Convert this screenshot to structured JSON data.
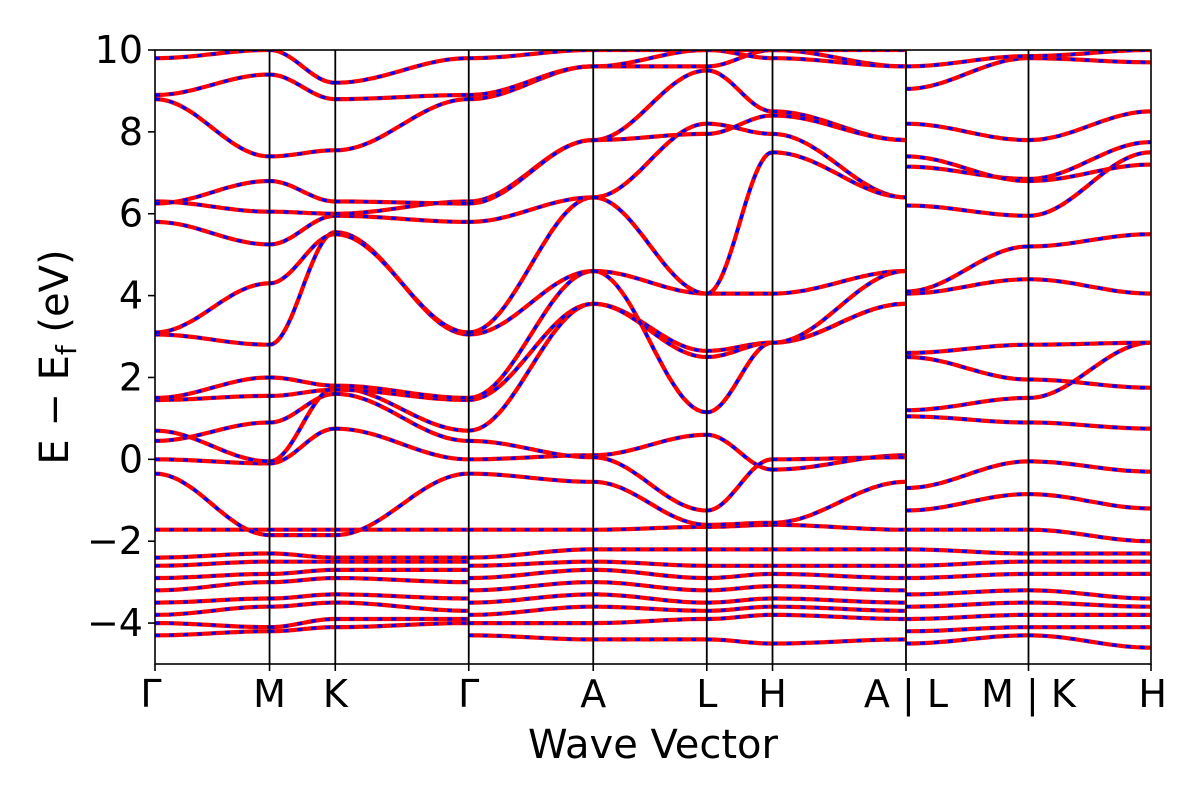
{
  "chart_data": {
    "type": "line",
    "xlabel": "Wave Vector",
    "ylabel": "E − E_f (eV)",
    "ylabel_main": "E − E",
    "ylabel_sub": "f",
    "ylabel_unit": " (eV)",
    "ylim": [
      -5,
      10
    ],
    "yticks": [
      "−4",
      "−2",
      "0",
      "2",
      "4",
      "6",
      "8",
      "10"
    ],
    "ytick_values": [
      -4,
      -2,
      0,
      2,
      4,
      6,
      8,
      10
    ],
    "xlim": [
      0,
      1
    ],
    "kpoints": [
      {
        "label": "Γ",
        "x": 0.0
      },
      {
        "label": "M",
        "x": 0.115
      },
      {
        "label": "K",
        "x": 0.181
      },
      {
        "label": "Γ",
        "x": 0.315
      },
      {
        "label": "A",
        "x": 0.44
      },
      {
        "label": "L",
        "x": 0.554
      },
      {
        "label": "H",
        "x": 0.62
      },
      {
        "label": "A | L",
        "x": 0.754
      },
      {
        "label": "M | K",
        "x": 0.877
      },
      {
        "label": "H",
        "x": 1.0
      }
    ],
    "series_colors": {
      "primary": "#ff0000",
      "secondary": "#0000ff"
    },
    "segments": [
      {
        "x0": 0.0,
        "x1": 0.115,
        "bands": [
          [
            -4.3,
            -4.2
          ],
          [
            -4.0,
            -4.1
          ],
          [
            -3.8,
            -3.6
          ],
          [
            -3.5,
            -3.4
          ],
          [
            -3.2,
            -3.0
          ],
          [
            -2.9,
            -2.8
          ],
          [
            -2.6,
            -2.5
          ],
          [
            -2.4,
            -2.3
          ],
          [
            -1.72,
            -1.72
          ],
          [
            -0.35,
            -1.85
          ],
          [
            0.0,
            -0.1
          ],
          [
            0.45,
            0.9
          ],
          [
            0.7,
            -0.05
          ],
          [
            1.45,
            1.55
          ],
          [
            1.5,
            2.0
          ],
          [
            3.05,
            2.8
          ],
          [
            3.1,
            4.3
          ],
          [
            5.8,
            5.25
          ],
          [
            6.3,
            6.05
          ],
          [
            6.25,
            6.8
          ],
          [
            8.8,
            7.4
          ],
          [
            8.9,
            9.4
          ],
          [
            9.8,
            10.0
          ]
        ]
      },
      {
        "x0": 0.115,
        "x1": 0.181,
        "bands": [
          [
            -4.2,
            -4.1
          ],
          [
            -4.1,
            -3.9
          ],
          [
            -3.6,
            -3.5
          ],
          [
            -3.4,
            -3.3
          ],
          [
            -3.0,
            -2.9
          ],
          [
            -2.8,
            -2.7
          ],
          [
            -2.5,
            -2.5
          ],
          [
            -2.3,
            -2.4
          ],
          [
            -1.72,
            -1.72
          ],
          [
            -1.85,
            -1.85
          ],
          [
            -0.1,
            0.75
          ],
          [
            0.9,
            1.6
          ],
          [
            -0.05,
            1.75
          ],
          [
            1.55,
            1.7
          ],
          [
            2.0,
            1.8
          ],
          [
            2.8,
            5.55
          ],
          [
            4.3,
            5.5
          ],
          [
            5.25,
            5.95
          ],
          [
            6.05,
            6.0
          ],
          [
            6.8,
            6.3
          ],
          [
            7.4,
            7.55
          ],
          [
            9.4,
            8.8
          ],
          [
            10.0,
            9.2
          ]
        ]
      },
      {
        "x0": 0.181,
        "x1": 0.315,
        "bands": [
          [
            -4.1,
            -4.0
          ],
          [
            -3.9,
            -3.9
          ],
          [
            -3.5,
            -3.7
          ],
          [
            -3.3,
            -3.4
          ],
          [
            -2.9,
            -3.0
          ],
          [
            -2.7,
            -2.7
          ],
          [
            -2.5,
            -2.5
          ],
          [
            -2.4,
            -2.4
          ],
          [
            -1.72,
            -1.72
          ],
          [
            -1.85,
            -0.35
          ],
          [
            0.75,
            0.0
          ],
          [
            1.6,
            0.45
          ],
          [
            1.75,
            0.7
          ],
          [
            1.7,
            1.45
          ],
          [
            1.8,
            1.5
          ],
          [
            5.55,
            3.05
          ],
          [
            5.5,
            3.1
          ],
          [
            5.95,
            5.8
          ],
          [
            6.0,
            6.3
          ],
          [
            6.3,
            6.25
          ],
          [
            7.55,
            8.8
          ],
          [
            8.8,
            8.9
          ],
          [
            9.2,
            9.8
          ]
        ]
      },
      {
        "x0": 0.315,
        "x1": 0.44,
        "bands": [
          [
            -4.3,
            -4.4
          ],
          [
            -4.0,
            -4.0
          ],
          [
            -3.8,
            -3.6
          ],
          [
            -3.5,
            -3.3
          ],
          [
            -3.2,
            -3.0
          ],
          [
            -2.9,
            -2.7
          ],
          [
            -2.6,
            -2.5
          ],
          [
            -2.4,
            -2.2
          ],
          [
            -1.72,
            -1.72
          ],
          [
            -0.35,
            -0.55
          ],
          [
            0.0,
            0.1
          ],
          [
            0.45,
            0.05
          ],
          [
            0.7,
            3.8
          ],
          [
            1.45,
            3.8
          ],
          [
            1.5,
            4.6
          ],
          [
            3.05,
            4.6
          ],
          [
            3.1,
            6.4
          ],
          [
            5.8,
            6.4
          ],
          [
            6.3,
            7.8
          ],
          [
            6.25,
            7.8
          ],
          [
            8.8,
            9.6
          ],
          [
            8.9,
            9.6
          ],
          [
            9.8,
            10.0
          ]
        ]
      },
      {
        "x0": 0.44,
        "x1": 0.554,
        "bands": [
          [
            -4.4,
            -4.4
          ],
          [
            -4.0,
            -3.9
          ],
          [
            -3.6,
            -3.7
          ],
          [
            -3.3,
            -3.5
          ],
          [
            -3.0,
            -3.2
          ],
          [
            -2.7,
            -2.9
          ],
          [
            -2.5,
            -2.6
          ],
          [
            -2.2,
            -2.2
          ],
          [
            -1.72,
            -1.65
          ],
          [
            -0.55,
            -1.6
          ],
          [
            0.1,
            0.6
          ],
          [
            0.05,
            -1.25
          ],
          [
            3.8,
            2.65
          ],
          [
            3.8,
            2.5
          ],
          [
            4.6,
            4.05
          ],
          [
            4.6,
            1.15
          ],
          [
            6.4,
            8.2
          ],
          [
            6.4,
            4.05
          ],
          [
            7.8,
            9.5
          ],
          [
            7.8,
            7.95
          ],
          [
            9.6,
            9.6
          ],
          [
            9.6,
            10.0
          ],
          [
            10.0,
            10.0
          ]
        ]
      },
      {
        "x0": 0.554,
        "x1": 0.62,
        "bands": [
          [
            -4.4,
            -4.5
          ],
          [
            -3.9,
            -3.8
          ],
          [
            -3.7,
            -3.6
          ],
          [
            -3.5,
            -3.4
          ],
          [
            -3.2,
            -3.1
          ],
          [
            -2.9,
            -2.8
          ],
          [
            -2.6,
            -2.6
          ],
          [
            -2.2,
            -2.2
          ],
          [
            -1.65,
            -1.6
          ],
          [
            -1.6,
            -1.55
          ],
          [
            0.6,
            -0.25
          ],
          [
            -1.25,
            0.0
          ],
          [
            2.65,
            2.85
          ],
          [
            2.5,
            2.85
          ],
          [
            4.05,
            4.05
          ],
          [
            1.15,
            2.85
          ],
          [
            8.2,
            7.95
          ],
          [
            4.05,
            7.5
          ],
          [
            9.5,
            8.5
          ],
          [
            7.95,
            8.4
          ],
          [
            9.6,
            10.0
          ],
          [
            10.0,
            9.8
          ],
          [
            10.0,
            10.0
          ]
        ]
      },
      {
        "x0": 0.62,
        "x1": 0.754,
        "bands": [
          [
            -4.5,
            -4.4
          ],
          [
            -3.8,
            -3.9
          ],
          [
            -3.6,
            -3.7
          ],
          [
            -3.4,
            -3.5
          ],
          [
            -3.1,
            -3.2
          ],
          [
            -2.8,
            -2.9
          ],
          [
            -2.6,
            -2.6
          ],
          [
            -2.2,
            -2.2
          ],
          [
            -1.6,
            -1.72
          ],
          [
            -1.55,
            -0.55
          ],
          [
            -0.25,
            0.1
          ],
          [
            0.0,
            0.05
          ],
          [
            2.85,
            3.8
          ],
          [
            2.85,
            3.8
          ],
          [
            4.05,
            4.6
          ],
          [
            2.85,
            4.6
          ],
          [
            7.95,
            6.4
          ],
          [
            7.5,
            6.4
          ],
          [
            8.5,
            7.8
          ],
          [
            8.4,
            7.8
          ],
          [
            10.0,
            9.6
          ],
          [
            9.8,
            9.6
          ],
          [
            10.0,
            10.0
          ]
        ]
      },
      {
        "x0": 0.754,
        "x1": 0.877,
        "bands": [
          [
            -4.5,
            -4.3
          ],
          [
            -4.2,
            -4.1
          ],
          [
            -3.9,
            -3.8
          ],
          [
            -3.6,
            -3.5
          ],
          [
            -3.3,
            -3.2
          ],
          [
            -2.9,
            -2.8
          ],
          [
            -2.6,
            -2.5
          ],
          [
            -2.2,
            -2.3
          ],
          [
            -1.72,
            -1.72
          ],
          [
            -1.25,
            -0.85
          ],
          [
            -0.7,
            -0.05
          ],
          [
            1.05,
            0.9
          ],
          [
            1.2,
            1.5
          ],
          [
            2.5,
            1.95
          ],
          [
            2.6,
            2.8
          ],
          [
            4.05,
            4.4
          ],
          [
            4.1,
            5.2
          ],
          [
            6.2,
            5.95
          ],
          [
            7.15,
            6.85
          ],
          [
            7.4,
            6.8
          ],
          [
            8.2,
            7.8
          ],
          [
            9.05,
            9.8
          ],
          [
            9.6,
            9.85
          ]
        ]
      },
      {
        "x0": 0.877,
        "x1": 1.0,
        "bands": [
          [
            -4.3,
            -4.6
          ],
          [
            -4.1,
            -4.1
          ],
          [
            -3.8,
            -3.8
          ],
          [
            -3.5,
            -3.6
          ],
          [
            -3.2,
            -3.4
          ],
          [
            -2.8,
            -2.8
          ],
          [
            -2.5,
            -2.5
          ],
          [
            -2.3,
            -2.3
          ],
          [
            -1.72,
            -2.0
          ],
          [
            -0.85,
            -1.2
          ],
          [
            -0.05,
            -0.3
          ],
          [
            0.9,
            0.75
          ],
          [
            1.5,
            2.85
          ],
          [
            1.95,
            1.75
          ],
          [
            2.8,
            2.85
          ],
          [
            4.4,
            4.05
          ],
          [
            5.2,
            5.5
          ],
          [
            5.95,
            7.5
          ],
          [
            6.85,
            7.75
          ],
          [
            6.8,
            7.2
          ],
          [
            7.8,
            8.5
          ],
          [
            9.8,
            9.7
          ],
          [
            9.85,
            10.0
          ]
        ]
      }
    ]
  }
}
